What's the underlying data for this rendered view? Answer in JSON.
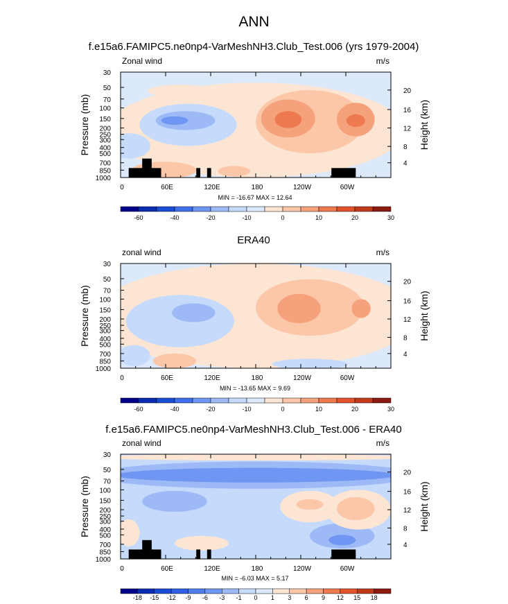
{
  "page": {
    "title": "ANN"
  },
  "chart_data": [
    {
      "type": "heatmap",
      "title": "f.e15a6.FAMIPC5.ne0np4-VarMeshNH3.Club_Test.006 (yrs 1979-2004)",
      "left_string": "Zonal wind",
      "right_string": "m/s",
      "xlabel": "",
      "ylabel": "Pressure (mb)",
      "right_ylabel": "Height (km)",
      "x_ticks": [
        "0",
        "60E",
        "120E",
        "180",
        "120W",
        "60W"
      ],
      "y_ticks": [
        "30",
        "50",
        "70",
        "100",
        "150",
        "200",
        "250",
        "300",
        "400",
        "500",
        "700",
        "850",
        "1000"
      ],
      "height_ticks": [
        "20",
        "16",
        "12",
        "8",
        "4"
      ],
      "stats": "MIN = -16.67  MAX =  12.64",
      "contour_levels": [
        "-60",
        "-40",
        "-20",
        "-10",
        "0",
        "10",
        "20",
        "30"
      ],
      "colors": [
        "#00008b",
        "#0a2cb0",
        "#1a4dd6",
        "#3f6fea",
        "#6f96f2",
        "#9dbaf7",
        "#c6dbfb",
        "#dbe9fb",
        "#fde5d3",
        "#fcc7a8",
        "#f5a27c",
        "#ee7a50",
        "#e2532e",
        "#c23a1c",
        "#8b1a10"
      ]
    },
    {
      "type": "heatmap",
      "title": "ERA40",
      "left_string": "zonal wind",
      "right_string": "m/s",
      "xlabel": "",
      "ylabel": "Pressure (mb)",
      "right_ylabel": "Height (km)",
      "x_ticks": [
        "0",
        "60E",
        "120E",
        "180",
        "120W",
        "60W"
      ],
      "y_ticks": [
        "30",
        "50",
        "70",
        "100",
        "150",
        "200",
        "250",
        "300",
        "400",
        "500",
        "700",
        "850",
        "1000"
      ],
      "height_ticks": [
        "20",
        "16",
        "12",
        "8",
        "4"
      ],
      "stats": "MIN = -13.65  MAX =  9.69",
      "contour_levels": [
        "-60",
        "-40",
        "-20",
        "-10",
        "0",
        "10",
        "20",
        "30"
      ],
      "colors": [
        "#00008b",
        "#0a2cb0",
        "#1a4dd6",
        "#3f6fea",
        "#6f96f2",
        "#9dbaf7",
        "#c6dbfb",
        "#dbe9fb",
        "#fde5d3",
        "#fcc7a8",
        "#f5a27c",
        "#ee7a50",
        "#e2532e",
        "#c23a1c",
        "#8b1a10"
      ]
    },
    {
      "type": "heatmap",
      "title": "f.e15a6.FAMIPC5.ne0np4-VarMeshNH3.Club_Test.006 - ERA40",
      "left_string": "zonal wind",
      "right_string": "m/s",
      "xlabel": "",
      "ylabel": "Pressure (mb)",
      "right_ylabel": "Height (km)",
      "x_ticks": [
        "0",
        "60E",
        "120E",
        "180",
        "120W",
        "60W"
      ],
      "y_ticks": [
        "30",
        "50",
        "70",
        "100",
        "150",
        "200",
        "250",
        "300",
        "400",
        "500",
        "700",
        "850",
        "1000"
      ],
      "height_ticks": [
        "20",
        "16",
        "12",
        "8",
        "4"
      ],
      "stats": "MIN = -6.03  MAX =  5.17",
      "contour_levels": [
        "-18",
        "-15",
        "-12",
        "-9",
        "-6",
        "-3",
        "-1",
        "0",
        "1",
        "3",
        "6",
        "9",
        "12",
        "15",
        "18"
      ],
      "colors": [
        "#00008b",
        "#0a2cb0",
        "#1a4dd6",
        "#2f5fe3",
        "#4f7fec",
        "#6f96f2",
        "#9dbaf7",
        "#c6dbfb",
        "#dbe9fb",
        "#fde5d3",
        "#fcc7a8",
        "#f5a27c",
        "#ee7a50",
        "#e2532e",
        "#c23a1c",
        "#8b1a10"
      ]
    }
  ]
}
